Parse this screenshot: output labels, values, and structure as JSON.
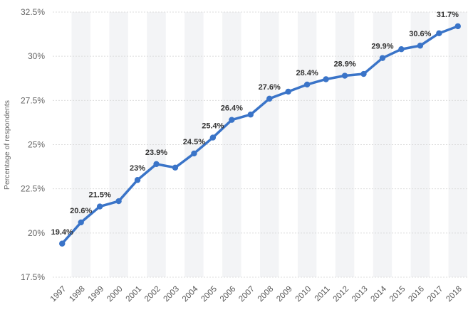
{
  "chart_data": {
    "type": "line",
    "title": "",
    "xlabel": "",
    "ylabel": "Percentage of respondents",
    "x": [
      "1997",
      "1998",
      "1999",
      "2000",
      "2001",
      "2002",
      "2003",
      "2004",
      "2005",
      "2006",
      "2007",
      "2008",
      "2009",
      "2010",
      "2011",
      "2012",
      "2013",
      "2014",
      "2015",
      "2016",
      "2017",
      "2018"
    ],
    "series": [
      {
        "values": [
          19.4,
          20.6,
          21.5,
          21.8,
          23.0,
          23.9,
          23.7,
          24.5,
          25.4,
          26.4,
          26.7,
          27.6,
          28.0,
          28.4,
          28.7,
          28.9,
          29.0,
          29.9,
          30.4,
          30.6,
          31.3,
          31.7
        ],
        "color": "#3a74c8"
      }
    ],
    "data_labels": [
      {
        "x": "1997",
        "text": "19.4%"
      },
      {
        "x": "1998",
        "text": "20.6%"
      },
      {
        "x": "1999",
        "text": "21.5%"
      },
      {
        "x": "2001",
        "text": "23%"
      },
      {
        "x": "2002",
        "text": "23.9%"
      },
      {
        "x": "2004",
        "text": "24.5%"
      },
      {
        "x": "2005",
        "text": "25.4%"
      },
      {
        "x": "2006",
        "text": "26.4%"
      },
      {
        "x": "2008",
        "text": "27.6%"
      },
      {
        "x": "2010",
        "text": "28.4%"
      },
      {
        "x": "2012",
        "text": "28.9%"
      },
      {
        "x": "2014",
        "text": "29.9%"
      },
      {
        "x": "2016",
        "text": "30.6%"
      },
      {
        "x": "2018",
        "text": "31.7%"
      }
    ],
    "ylim": [
      17.5,
      32.5
    ],
    "yticks": [
      "17.5%",
      "20%",
      "22.5%",
      "25%",
      "27.5%",
      "30%",
      "32.5%"
    ],
    "ytick_values": [
      17.5,
      20,
      22.5,
      25,
      27.5,
      30,
      32.5
    ],
    "grid": true,
    "colors": {
      "line": "#3a74c8",
      "band": "#f3f4f6",
      "grid": "#dcdcdc"
    }
  }
}
